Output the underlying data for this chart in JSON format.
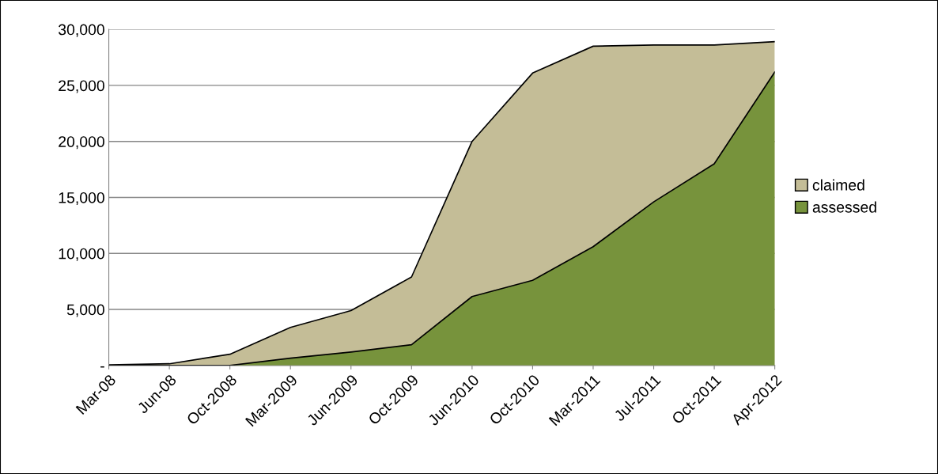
{
  "chart_data": {
    "type": "area",
    "categories": [
      "Mar-08",
      "Jun-08",
      "Oct-2008",
      "Mar-2009",
      "Jun-2009",
      "Oct-2009",
      "Jun-2010",
      "Oct-2010",
      "Mar-2011",
      "Jul-2011",
      "Oct-2011",
      "Apr-2012"
    ],
    "series": [
      {
        "name": "claimed",
        "color": "#c4bd97",
        "values": [
          50,
          150,
          1000,
          3400,
          4900,
          7900,
          20000,
          26100,
          28500,
          28600,
          28600,
          28900
        ]
      },
      {
        "name": "assessed",
        "color": "#77933c",
        "values": [
          0,
          0,
          0,
          650,
          1200,
          1850,
          6150,
          7600,
          10600,
          14600,
          18000,
          26200
        ]
      }
    ],
    "ylim": [
      0,
      30000
    ],
    "yticks": [
      {
        "value": 0,
        "label": "-"
      },
      {
        "value": 5000,
        "label": "5,000"
      },
      {
        "value": 10000,
        "label": "10,000"
      },
      {
        "value": 15000,
        "label": "15,000"
      },
      {
        "value": 20000,
        "label": "20,000"
      },
      {
        "value": 25000,
        "label": "25,000"
      },
      {
        "value": 30000,
        "label": "30,000"
      }
    ],
    "grid": "y",
    "legend": "right"
  }
}
